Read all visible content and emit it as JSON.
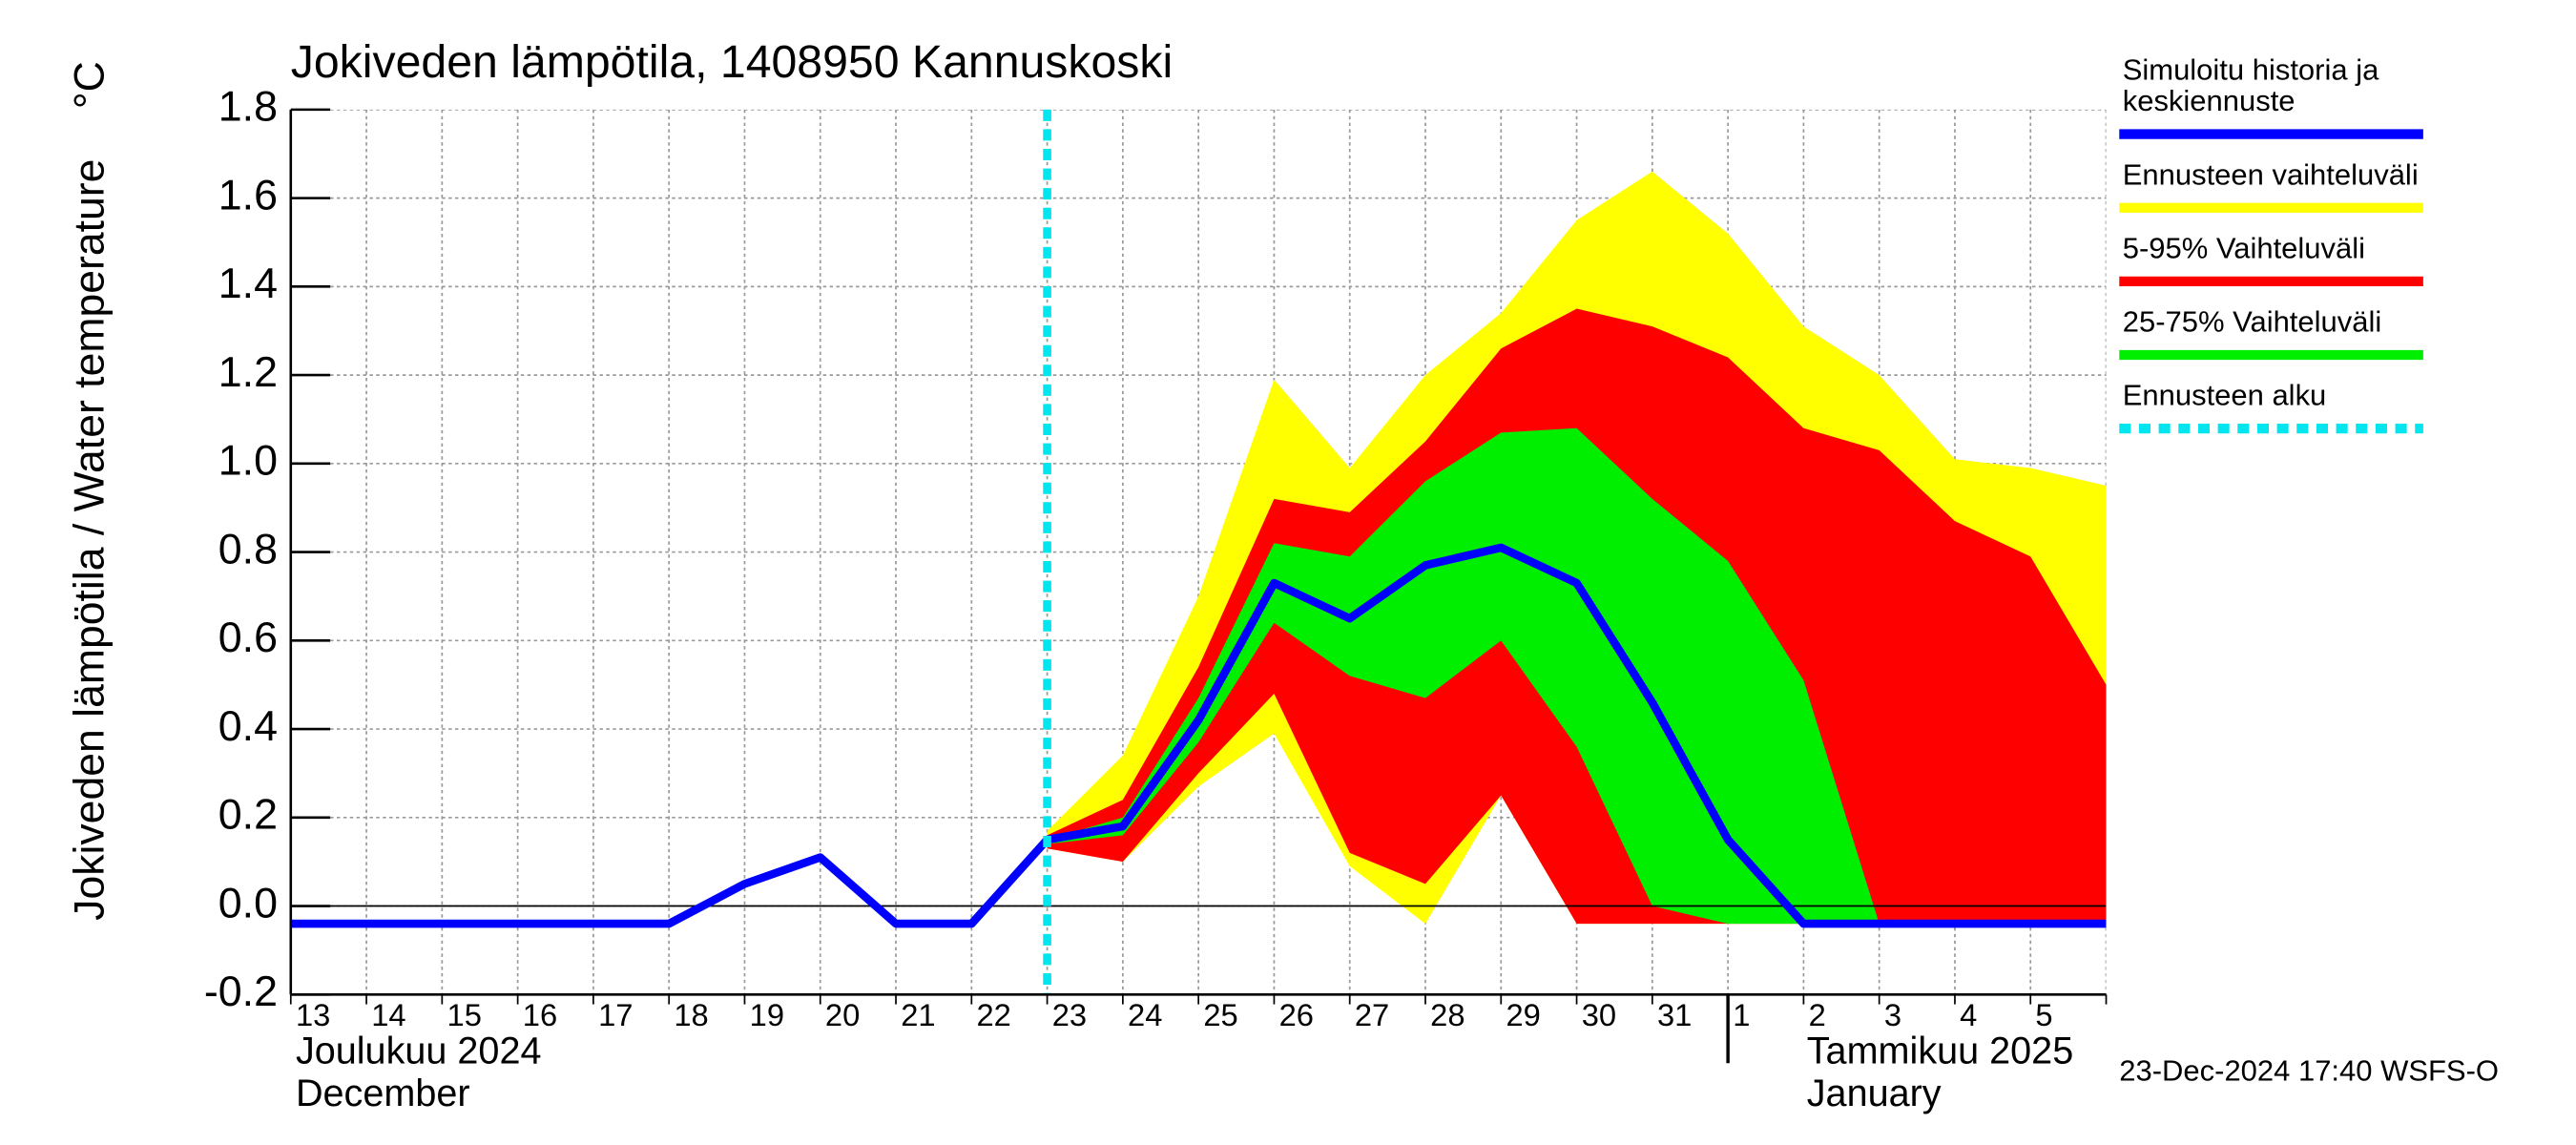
{
  "chart_data": {
    "type": "band_forecast",
    "title": "Jokiveden lämpötila, 1408950 Kannuskoski",
    "y_label": "Jokiveden lämpötila / Water temperature",
    "y_unit": "°C",
    "categories": [
      "13",
      "14",
      "15",
      "16",
      "17",
      "18",
      "19",
      "20",
      "21",
      "22",
      "23",
      "24",
      "25",
      "26",
      "27",
      "28",
      "29",
      "30",
      "31",
      "1",
      "2",
      "3",
      "4",
      "5",
      null
    ],
    "months": [
      {
        "fi": "Joulukuu  2024",
        "en": "December",
        "start": 0
      },
      {
        "fi": "Tammikuu  2025",
        "en": "January",
        "start": 19
      }
    ],
    "ylim": [
      -0.2,
      1.8
    ],
    "yticks": [
      -0.2,
      {
        "value": 0,
        "label": "0.0"
      },
      0.2,
      0.4,
      0.6,
      0.8,
      {
        "value": 1,
        "label": "1.0"
      },
      1.2,
      1.4,
      1.6,
      1.8
    ],
    "grid": true,
    "bands": [
      {
        "name": "Ennusteen vaihteluväli",
        "color": "#ffff00",
        "upper": [
          null,
          null,
          null,
          null,
          null,
          null,
          null,
          null,
          null,
          null,
          0.17,
          0.34,
          0.7,
          1.19,
          0.99,
          1.2,
          1.34,
          1.55,
          1.66,
          1.52,
          1.31,
          1.2,
          1.01,
          0.99,
          0.95
        ],
        "lower": [
          null,
          null,
          null,
          null,
          null,
          null,
          null,
          null,
          null,
          null,
          0.13,
          0.1,
          0.27,
          0.39,
          0.09,
          -0.04,
          0.25,
          -0.04,
          -0.04,
          -0.04,
          -0.04,
          -0.04,
          -0.04,
          -0.04,
          -0.04
        ]
      },
      {
        "name": "5-95% Vaihteluväli",
        "color": "#ff0000",
        "upper": [
          null,
          null,
          null,
          null,
          null,
          null,
          null,
          null,
          null,
          null,
          0.16,
          0.24,
          0.54,
          0.92,
          0.89,
          1.05,
          1.26,
          1.35,
          1.31,
          1.24,
          1.08,
          1.03,
          0.87,
          0.79,
          0.5
        ],
        "lower": [
          null,
          null,
          null,
          null,
          null,
          null,
          null,
          null,
          null,
          null,
          0.13,
          0.1,
          0.3,
          0.48,
          0.12,
          0.05,
          0.25,
          -0.04,
          -0.04,
          -0.04,
          -0.04,
          -0.04,
          -0.04,
          -0.04,
          -0.04
        ]
      },
      {
        "name": "25-75% Vaihteluväli",
        "color": "#00ee00",
        "upper": [
          null,
          null,
          null,
          null,
          null,
          null,
          null,
          null,
          null,
          null,
          0.15,
          0.2,
          0.47,
          0.82,
          0.79,
          0.96,
          1.07,
          1.08,
          0.92,
          0.78,
          0.51,
          -0.04,
          -0.04,
          -0.04,
          -0.04
        ],
        "lower": [
          null,
          null,
          null,
          null,
          null,
          null,
          null,
          null,
          null,
          null,
          0.14,
          0.16,
          0.37,
          0.64,
          0.52,
          0.47,
          0.6,
          0.36,
          0.0,
          -0.04,
          -0.04,
          -0.04,
          -0.04,
          -0.04,
          -0.04
        ]
      }
    ],
    "series": [
      {
        "name": "Simuloitu historia ja\nkeskiennuste",
        "color": "#0000ff",
        "values": [
          -0.04,
          -0.04,
          -0.04,
          -0.04,
          -0.04,
          -0.04,
          0.05,
          0.11,
          -0.04,
          -0.04,
          0.15,
          0.18,
          0.42,
          0.73,
          0.65,
          0.77,
          0.81,
          0.73,
          0.46,
          0.15,
          -0.04,
          -0.04,
          -0.04,
          -0.04,
          -0.04
        ]
      }
    ],
    "forecast_start": {
      "name": "Ennusteen alku",
      "color": "#00e5ee",
      "category": "23"
    },
    "footer": "23-Dec-2024 17:40 WSFS-O"
  }
}
